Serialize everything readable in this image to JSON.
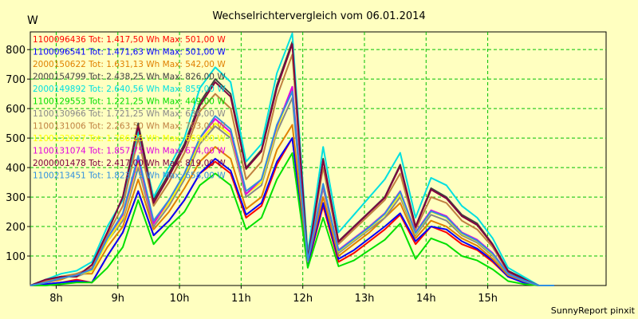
{
  "chart_data": {
    "type": "line",
    "title": "Wechselrichtervergleich vom 06.01.2014",
    "ylabel": "W",
    "xlabel": "",
    "footer": "SunnyReport pinxit",
    "ylim": [
      0,
      860
    ],
    "xlim": [
      7.58,
      16.92
    ],
    "yticks": [
      100,
      200,
      300,
      400,
      500,
      600,
      700,
      800
    ],
    "xticks": [
      {
        "label": "8h",
        "value": 8
      },
      {
        "label": "9h",
        "value": 9
      },
      {
        "label": "10h",
        "value": 10
      },
      {
        "label": "11h",
        "value": 11
      },
      {
        "label": "12h",
        "value": 12
      },
      {
        "label": "13h",
        "value": 13
      },
      {
        "label": "14h",
        "value": 14
      },
      {
        "label": "15h",
        "value": 15
      }
    ],
    "grid": true,
    "legend_position": "top-left",
    "x": [
      7.58,
      7.83,
      8.08,
      8.33,
      8.58,
      8.83,
      9.08,
      9.33,
      9.58,
      9.83,
      10.08,
      10.33,
      10.58,
      10.83,
      11.08,
      11.33,
      11.58,
      11.83,
      12.08,
      12.33,
      12.58,
      12.83,
      13.08,
      13.33,
      13.58,
      13.83,
      14.08,
      14.33,
      14.58,
      14.83,
      15.08,
      15.33,
      15.58,
      15.83,
      16.08
    ],
    "series": [
      {
        "name": "1100096436",
        "legend": "1100096436 Tot: 1.417,50 Wh Max: 501,00 W",
        "color": "#ff0000",
        "values": [
          0,
          5,
          10,
          20,
          10,
          100,
          180,
          320,
          170,
          220,
          290,
          380,
          420,
          380,
          230,
          270,
          410,
          500,
          70,
          270,
          80,
          110,
          150,
          190,
          240,
          140,
          200,
          180,
          140,
          120,
          80,
          30,
          10,
          0,
          0
        ]
      },
      {
        "name": "1100096541",
        "legend": "1100096541 Tot: 1.471,63 Wh Max: 501,00 W",
        "color": "#0000ff",
        "values": [
          0,
          5,
          10,
          15,
          10,
          100,
          180,
          320,
          170,
          220,
          290,
          380,
          430,
          390,
          240,
          280,
          420,
          500,
          75,
          280,
          90,
          120,
          160,
          200,
          245,
          150,
          200,
          190,
          150,
          125,
          85,
          30,
          10,
          0,
          0
        ]
      },
      {
        "name": "2000150622",
        "legend": "2000150622 Tot: 1.631,13 Wh Max: 542,00 W",
        "color": "#e08000",
        "values": [
          0,
          10,
          20,
          40,
          40,
          130,
          200,
          360,
          190,
          250,
          330,
          420,
          470,
          430,
          260,
          300,
          460,
          545,
          85,
          300,
          100,
          140,
          180,
          230,
          280,
          160,
          220,
          200,
          160,
          135,
          90,
          35,
          15,
          0,
          0
        ]
      },
      {
        "name": "2000154799",
        "legend": "2000154799 Tot: 2.438,25 Wh Max: 826,00 W",
        "color": "#404040",
        "values": [
          0,
          20,
          30,
          30,
          70,
          180,
          300,
          550,
          290,
          380,
          480,
          620,
          700,
          650,
          400,
          460,
          680,
          826,
          90,
          430,
          150,
          200,
          250,
          300,
          410,
          200,
          330,
          300,
          240,
          210,
          140,
          50,
          25,
          0,
          0
        ]
      },
      {
        "name": "2000149892",
        "legend": "2000149892 Tot: 2.640,56 Wh Max: 855,00 W",
        "color": "#00e0e0",
        "values": [
          0,
          20,
          40,
          50,
          80,
          200,
          290,
          520,
          300,
          400,
          500,
          670,
          740,
          690,
          420,
          480,
          720,
          855,
          110,
          470,
          180,
          240,
          300,
          360,
          450,
          230,
          365,
          340,
          270,
          230,
          160,
          60,
          30,
          0,
          0
        ]
      },
      {
        "name": "1100129553",
        "legend": "1100129553 Tot: 1.221,25 Wh Max: 449,00 W",
        "color": "#00e000",
        "values": [
          0,
          0,
          5,
          10,
          10,
          60,
          130,
          290,
          140,
          200,
          250,
          340,
          380,
          340,
          190,
          230,
          360,
          449,
          60,
          230,
          65,
          85,
          120,
          155,
          210,
          90,
          160,
          140,
          100,
          85,
          55,
          15,
          5,
          0,
          0
        ]
      },
      {
        "name": "1100130966",
        "legend": "1100130966 Tot: 1.721,25 Wh Max: 636,00 W",
        "color": "#888888",
        "values": [
          0,
          10,
          30,
          30,
          50,
          150,
          220,
          400,
          200,
          270,
          360,
          480,
          540,
          500,
          300,
          340,
          520,
          636,
          80,
          330,
          110,
          150,
          190,
          230,
          300,
          170,
          240,
          220,
          170,
          145,
          100,
          40,
          15,
          0,
          0
        ]
      },
      {
        "name": "1100131006",
        "legend": "1100131006 Tot: 2.263,50 Wh Max: 783,00 W",
        "color": "#c08040",
        "values": [
          0,
          15,
          30,
          40,
          60,
          170,
          270,
          500,
          270,
          350,
          450,
          590,
          650,
          600,
          360,
          420,
          640,
          783,
          90,
          400,
          140,
          190,
          240,
          290,
          380,
          190,
          300,
          280,
          220,
          190,
          130,
          45,
          20,
          0,
          0
        ]
      },
      {
        "name": "1100132027",
        "legend": "1100132027 Tot: 1.786,25 Wh Max: 669,00 W",
        "color": "#ffff00",
        "values": [
          0,
          10,
          25,
          35,
          50,
          150,
          230,
          420,
          210,
          280,
          370,
          490,
          550,
          510,
          310,
          350,
          530,
          669,
          85,
          340,
          115,
          155,
          195,
          240,
          310,
          175,
          250,
          230,
          175,
          150,
          105,
          40,
          18,
          0,
          0
        ]
      },
      {
        "name": "1100131074",
        "legend": "1100131074 Tot: 1.857,75 Wh Max: 674,00 W",
        "color": "#e000e0",
        "values": [
          0,
          10,
          25,
          35,
          55,
          160,
          240,
          430,
          210,
          290,
          380,
          500,
          565,
          520,
          310,
          360,
          540,
          674,
          85,
          340,
          120,
          160,
          200,
          245,
          320,
          180,
          255,
          235,
          180,
          155,
          110,
          40,
          18,
          0,
          0
        ]
      },
      {
        "name": "2000001478",
        "legend": "2000001478 Tot: 2.417,00 Wh Max: 819,00 W",
        "color": "#800040",
        "values": [
          0,
          20,
          30,
          30,
          70,
          180,
          300,
          540,
          280,
          370,
          470,
          610,
          690,
          640,
          395,
          455,
          670,
          819,
          90,
          425,
          148,
          198,
          248,
          298,
          405,
          198,
          325,
          295,
          235,
          205,
          138,
          48,
          22,
          0,
          0
        ]
      },
      {
        "name": "1100213451",
        "legend": "1100213451 Tot: 1.823,75 Wh Max: 658,00 W",
        "color": "#3090e0",
        "values": [
          0,
          10,
          25,
          35,
          55,
          160,
          245,
          440,
          220,
          290,
          380,
          500,
          575,
          530,
          320,
          360,
          545,
          658,
          85,
          345,
          118,
          158,
          198,
          243,
          318,
          178,
          252,
          232,
          178,
          152,
          108,
          40,
          18,
          0,
          0
        ]
      }
    ]
  }
}
